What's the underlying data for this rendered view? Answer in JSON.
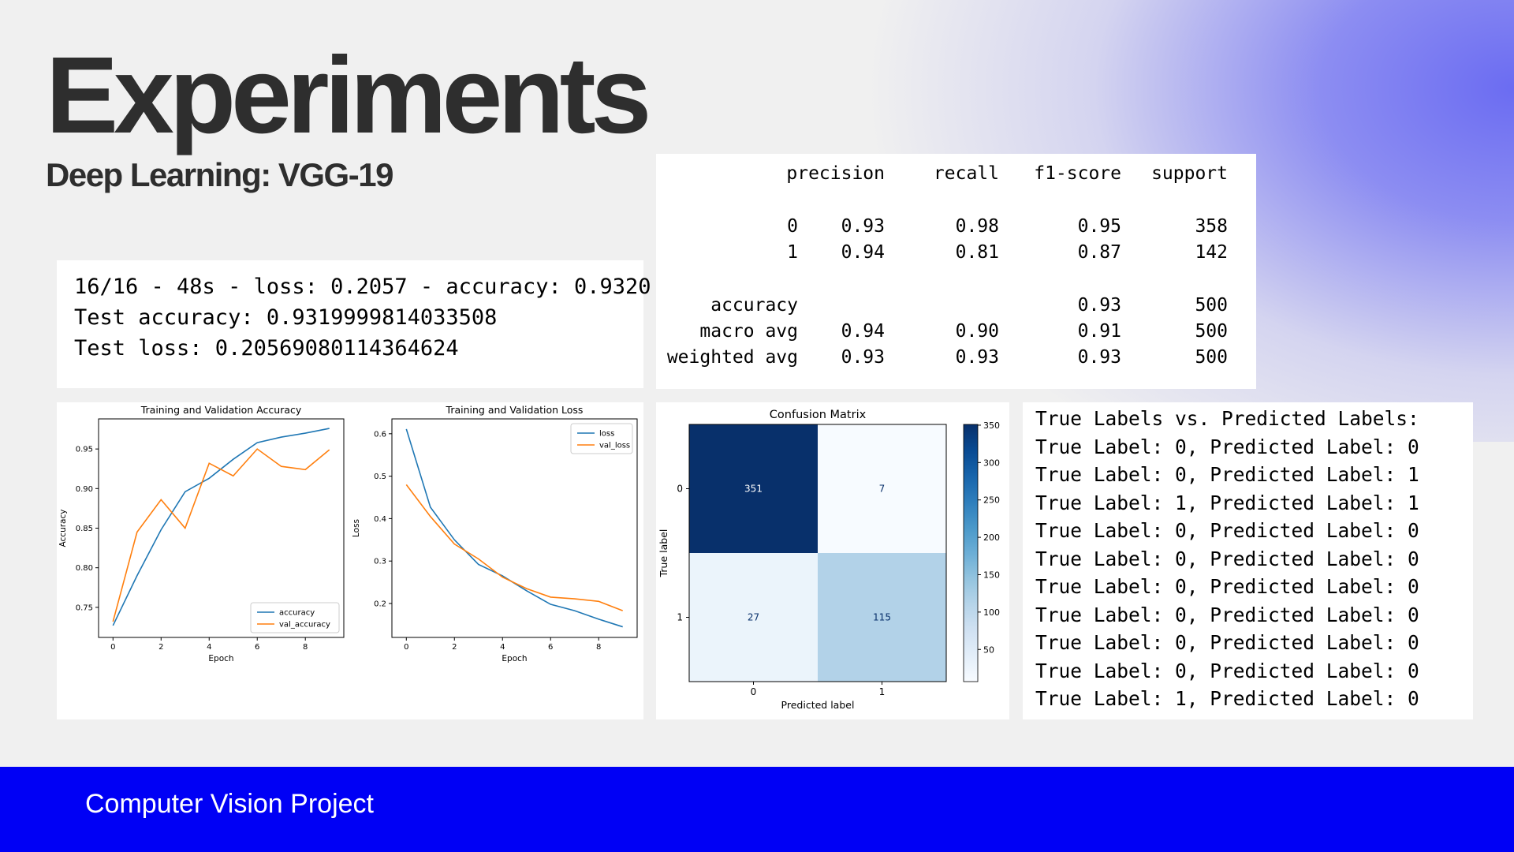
{
  "slide": {
    "title": "Experiments",
    "subtitle": "Deep Learning: VGG-19",
    "footer": "Computer Vision Project",
    "accent_color": "#0000f5",
    "gradient_color": "#6b6cf2"
  },
  "eval_output": [
    "16/16 - 48s - loss: 0.2057 - accuracy: 0.9320",
    "Test accuracy: 0.9319999814033508",
    "Test loss: 0.20569080114364624"
  ],
  "classification_report": {
    "headers": [
      "precision",
      "recall",
      "f1-score",
      "support"
    ],
    "rows": [
      {
        "label": "0",
        "precision": "0.93",
        "recall": "0.98",
        "f1": "0.95",
        "support": "358"
      },
      {
        "label": "1",
        "precision": "0.94",
        "recall": "0.81",
        "f1": "0.87",
        "support": "142"
      },
      {
        "label": "accuracy",
        "precision": "",
        "recall": "",
        "f1": "0.93",
        "support": "500"
      },
      {
        "label": "macro avg",
        "precision": "0.94",
        "recall": "0.90",
        "f1": "0.91",
        "support": "500"
      },
      {
        "label": "weighted avg",
        "precision": "0.93",
        "recall": "0.93",
        "f1": "0.93",
        "support": "500"
      }
    ]
  },
  "label_comparison": [
    "True Labels vs. Predicted Labels:",
    "True Label: 0, Predicted Label: 0",
    "True Label: 0, Predicted Label: 1",
    "True Label: 1, Predicted Label: 1",
    "True Label: 0, Predicted Label: 0",
    "True Label: 0, Predicted Label: 0",
    "True Label: 0, Predicted Label: 0",
    "True Label: 0, Predicted Label: 0",
    "True Label: 0, Predicted Label: 0",
    "True Label: 0, Predicted Label: 0",
    "True Label: 1, Predicted Label: 0"
  ],
  "chart_data": [
    {
      "type": "line",
      "title": "Training and Validation Accuracy",
      "xlabel": "Epoch",
      "ylabel": "Accuracy",
      "xlim": [
        -0.6,
        9.6
      ],
      "ylim": [
        0.712,
        0.988
      ],
      "xticks": [
        0,
        2,
        4,
        6,
        8
      ],
      "yticks": [
        0.75,
        0.8,
        0.85,
        0.9,
        0.95
      ],
      "ytick_labels": [
        "0.75",
        "0.80",
        "0.85",
        "0.90",
        "0.95"
      ],
      "legend": "lower-right",
      "x": [
        0,
        1,
        2,
        3,
        4,
        5,
        6,
        7,
        8,
        9
      ],
      "series": [
        {
          "name": "accuracy",
          "color": "#1f77b4",
          "values": [
            0.727,
            0.79,
            0.848,
            0.896,
            0.913,
            0.937,
            0.958,
            0.965,
            0.97,
            0.976
          ]
        },
        {
          "name": "val_accuracy",
          "color": "#ff7f0e",
          "values": [
            0.732,
            0.845,
            0.886,
            0.85,
            0.932,
            0.916,
            0.95,
            0.928,
            0.924,
            0.949
          ]
        }
      ]
    },
    {
      "type": "line",
      "title": "Training and Validation Loss",
      "xlabel": "Epoch",
      "ylabel": "Loss",
      "xlim": [
        -0.6,
        9.6
      ],
      "ylim": [
        0.12,
        0.635
      ],
      "xticks": [
        0,
        2,
        4,
        6,
        8
      ],
      "yticks": [
        0.2,
        0.3,
        0.4,
        0.5,
        0.6
      ],
      "ytick_labels": [
        "0.2",
        "0.3",
        "0.4",
        "0.5",
        "0.6"
      ],
      "legend": "upper-right",
      "x": [
        0,
        1,
        2,
        3,
        4,
        5,
        6,
        7,
        8,
        9
      ],
      "series": [
        {
          "name": "loss",
          "color": "#1f77b4",
          "values": [
            0.611,
            0.427,
            0.35,
            0.292,
            0.265,
            0.23,
            0.198,
            0.183,
            0.163,
            0.145
          ]
        },
        {
          "name": "val_loss",
          "color": "#ff7f0e",
          "values": [
            0.48,
            0.405,
            0.34,
            0.305,
            0.262,
            0.235,
            0.215,
            0.211,
            0.205,
            0.183
          ]
        }
      ]
    },
    {
      "type": "heatmap",
      "title": "Confusion Matrix",
      "xlabel": "Predicted label",
      "ylabel": "True label",
      "x_categories": [
        "0",
        "1"
      ],
      "y_categories": [
        "0",
        "1"
      ],
      "values": [
        [
          351,
          7
        ],
        [
          27,
          115
        ]
      ],
      "colormap": "Blues",
      "colorbar_ticks": [
        50,
        100,
        150,
        200,
        250,
        300,
        350
      ],
      "colorbar_range": [
        7,
        351
      ]
    }
  ]
}
